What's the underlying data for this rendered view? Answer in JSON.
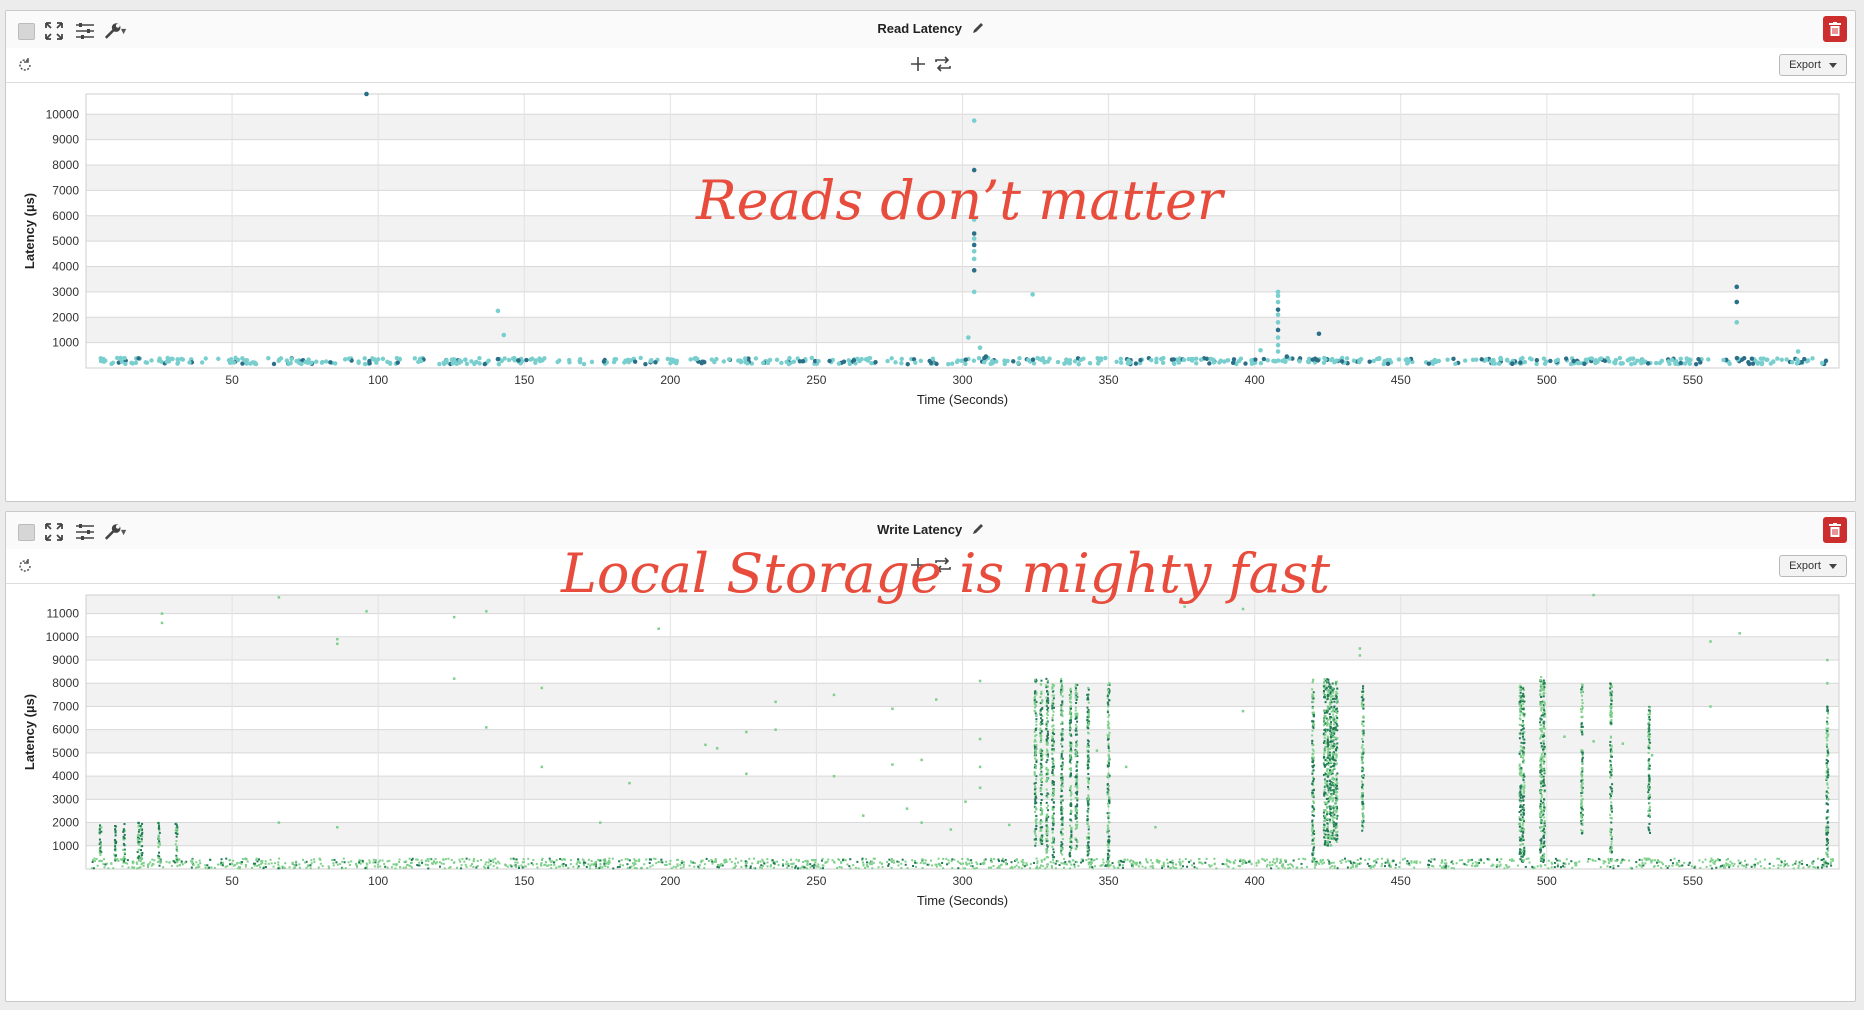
{
  "panels": [
    {
      "title": "Read Latency",
      "export_label": "Export",
      "annotation": "Reads don’t matter",
      "palette": {
        "light": "#79cece",
        "dark": "#2a6e87"
      },
      "chart_data": {
        "type": "scatter",
        "xlabel": "Time (Seconds)",
        "ylabel": "Latency (µs)",
        "xlim": [
          0,
          600
        ],
        "ylim": [
          0,
          10800
        ],
        "xticks": [
          50,
          100,
          150,
          200,
          250,
          300,
          350,
          400,
          450,
          500,
          550
        ],
        "yticks": [
          1000,
          2000,
          3000,
          4000,
          5000,
          6000,
          7000,
          8000,
          9000,
          10000
        ],
        "grid": "horizontal bands",
        "series": [
          {
            "points": [
              [
                96,
                10800
              ],
              [
                304,
                9750
              ],
              [
                304,
                7800
              ],
              [
                304,
                5850
              ],
              [
                304,
                5300
              ],
              [
                304,
                5100
              ],
              [
                304,
                4850
              ],
              [
                304,
                4600
              ],
              [
                304,
                4300
              ],
              [
                304,
                3850
              ],
              [
                304,
                3000
              ],
              [
                141,
                2250
              ],
              [
                143,
                1300
              ],
              [
                302,
                1200
              ],
              [
                306,
                800
              ],
              [
                324,
                2900
              ],
              [
                408,
                3000
              ],
              [
                408,
                2850
              ],
              [
                408,
                2600
              ],
              [
                408,
                2300
              ],
              [
                408,
                2100
              ],
              [
                408,
                1800
              ],
              [
                408,
                1500
              ],
              [
                408,
                1200
              ],
              [
                408,
                900
              ],
              [
                408,
                650
              ],
              [
                422,
                1350
              ],
              [
                402,
                700
              ],
              [
                565,
                3200
              ],
              [
                565,
                2600
              ],
              [
                565,
                1800
              ],
              [
                586,
                650
              ],
              [
                308,
                450
              ],
              [
                411,
                450
              ],
              [
                141,
                350
              ],
              [
                148,
                300
              ]
            ]
          }
        ],
        "baseline": {
          "from": 5,
          "to": 598,
          "range": [
            150,
            400
          ],
          "note": "dense band of points near 200-300 µs across the whole run"
        }
      }
    },
    {
      "title": "Write Latency",
      "export_label": "Export",
      "annotation": "Local Storage is mighty fast",
      "palette": {
        "light": "#7ed08a",
        "dark": "#1f7a55"
      },
      "chart_data": {
        "type": "scatter",
        "xlabel": "Time (Seconds)",
        "ylabel": "Latency (µs)",
        "xlim": [
          0,
          600
        ],
        "ylim": [
          0,
          11800
        ],
        "xticks": [
          50,
          100,
          150,
          200,
          250,
          300,
          350,
          400,
          450,
          500,
          550
        ],
        "yticks": [
          1000,
          2000,
          3000,
          4000,
          5000,
          6000,
          7000,
          8000,
          9000,
          10000,
          11000
        ],
        "grid": "horizontal bands",
        "series": [
          {
            "points": [
              [
                26,
                11000
              ],
              [
                26,
                10600
              ],
              [
                66,
                11700
              ],
              [
                96,
                11100
              ],
              [
                126,
                10850
              ],
              [
                137,
                11100
              ],
              [
                126,
                8200
              ],
              [
                86,
                9700
              ],
              [
                86,
                9900
              ],
              [
                137,
                6100
              ],
              [
                156,
                7800
              ],
              [
                156,
                4400
              ],
              [
                196,
                10350
              ],
              [
                186,
                3700
              ],
              [
                212,
                5350
              ],
              [
                216,
                5200
              ],
              [
                226,
                5900
              ],
              [
                226,
                4100
              ],
              [
                236,
                7200
              ],
              [
                236,
                6000
              ],
              [
                256,
                7500
              ],
              [
                256,
                4000
              ],
              [
                266,
                2300
              ],
              [
                276,
                4500
              ],
              [
                276,
                6900
              ],
              [
                281,
                2600
              ],
              [
                286,
                4700
              ],
              [
                291,
                7300
              ],
              [
                296,
                1700
              ],
              [
                301,
                2900
              ],
              [
                306,
                3500
              ],
              [
                306,
                5600
              ],
              [
                306,
                4400
              ],
              [
                306,
                8100
              ],
              [
                316,
                1900
              ],
              [
                346,
                5100
              ],
              [
                356,
                4400
              ],
              [
                376,
                11300
              ],
              [
                366,
                1800
              ],
              [
                396,
                11200
              ],
              [
                396,
                6800
              ],
              [
                436,
                9200
              ],
              [
                436,
                9500
              ],
              [
                506,
                5700
              ],
              [
                516,
                5500
              ],
              [
                526,
                5400
              ],
              [
                536,
                4900
              ],
              [
                556,
                7000
              ],
              [
                556,
                9800
              ],
              [
                566,
                10150
              ],
              [
                596,
                8000
              ],
              [
                596,
                9000
              ],
              [
                516,
                11800
              ],
              [
                66,
                2000
              ],
              [
                86,
                1800
              ],
              [
                176,
                2000
              ],
              [
                286,
                2000
              ]
            ]
          }
        ],
        "columns": [
          [
            5,
            300,
            2000
          ],
          [
            10,
            300,
            2000
          ],
          [
            13,
            300,
            2000
          ],
          [
            18,
            300,
            2000
          ],
          [
            19,
            300,
            2000
          ],
          [
            25,
            300,
            2000
          ],
          [
            31,
            300,
            2000
          ],
          [
            325,
            1000,
            8200
          ],
          [
            327,
            1000,
            8200
          ],
          [
            329,
            500,
            8200
          ],
          [
            331,
            500,
            8000
          ],
          [
            334,
            500,
            8200
          ],
          [
            337,
            500,
            7800
          ],
          [
            339,
            800,
            8000
          ],
          [
            343,
            500,
            7800
          ],
          [
            350,
            100,
            8100
          ],
          [
            420,
            300,
            8200
          ],
          [
            424,
            1000,
            8200
          ],
          [
            425,
            1000,
            8200
          ],
          [
            426,
            1000,
            8000
          ],
          [
            427,
            1000,
            8000
          ],
          [
            428,
            1000,
            8200
          ],
          [
            437,
            1500,
            8000
          ],
          [
            491,
            300,
            8000
          ],
          [
            492,
            300,
            7800
          ],
          [
            498,
            300,
            8300
          ],
          [
            499,
            300,
            8200
          ],
          [
            512,
            1500,
            8000
          ],
          [
            522,
            300,
            8000
          ],
          [
            535,
            1500,
            7000
          ],
          [
            596,
            200,
            7000
          ]
        ],
        "baseline": {
          "from": 2,
          "to": 598,
          "range": [
            20,
            450
          ],
          "note": "dense band of points near 100-300 µs across the whole run"
        }
      }
    }
  ]
}
